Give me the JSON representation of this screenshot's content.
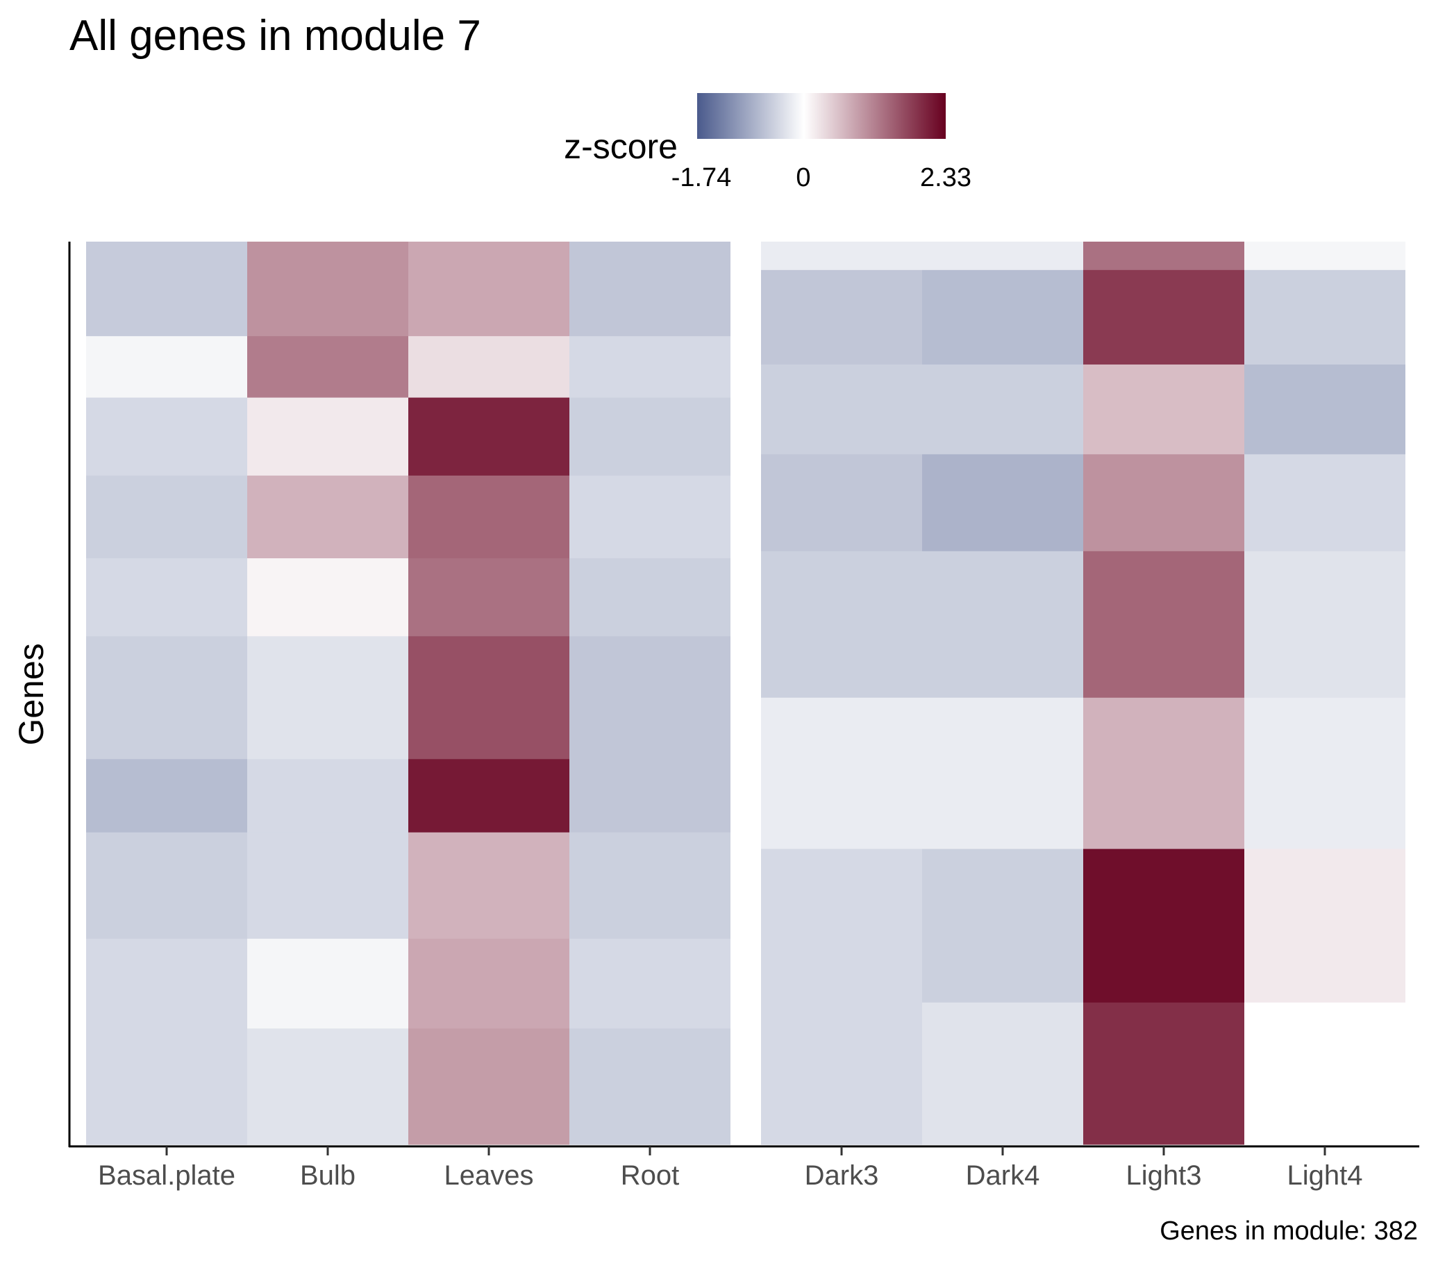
{
  "chart_data": {
    "type": "heatmap",
    "title": "All genes in module 7",
    "ylabel": "Genes",
    "xlabel": "",
    "caption": "Genes in module: 382",
    "n_genes": 382,
    "legend": {
      "title": "z-score",
      "min": -1.74,
      "mid": 0,
      "max": 2.33,
      "tick_labels": [
        "-1.74",
        "0",
        "2.33"
      ],
      "low_color": "#4a5a8c",
      "mid_color": "#ffffff",
      "high_color": "#67001f",
      "placement": "top"
    },
    "panels": [
      {
        "columns": [
          "Basal.plate",
          "Bulb",
          "Leaves",
          "Root"
        ],
        "cluster_rows": [
          {
            "genes": 40,
            "values": [
              -0.55,
              1.0,
              0.8,
              -0.6
            ]
          },
          {
            "genes": 26,
            "values": [
              -0.1,
              1.2,
              0.3,
              -0.4
            ]
          },
          {
            "genes": 33,
            "values": [
              -0.4,
              0.2,
              2.0,
              -0.5
            ]
          },
          {
            "genes": 35,
            "values": [
              -0.5,
              0.7,
              1.4,
              -0.4
            ]
          },
          {
            "genes": 33,
            "values": [
              -0.4,
              0.1,
              1.3,
              -0.5
            ]
          },
          {
            "genes": 52,
            "values": [
              -0.5,
              -0.3,
              1.6,
              -0.6
            ]
          },
          {
            "genes": 31,
            "values": [
              -0.7,
              -0.4,
              2.1,
              -0.6
            ]
          },
          {
            "genes": 45,
            "values": [
              -0.5,
              -0.4,
              0.7,
              -0.5
            ]
          },
          {
            "genes": 38,
            "values": [
              -0.4,
              -0.1,
              0.8,
              -0.4
            ]
          },
          {
            "genes": 49,
            "values": [
              -0.4,
              -0.3,
              0.9,
              -0.5
            ]
          }
        ]
      },
      {
        "columns": [
          "Dark3",
          "Dark4",
          "Light3",
          "Light4"
        ],
        "cluster_rows": [
          {
            "genes": 12,
            "values": [
              -0.2,
              -0.2,
              1.3,
              -0.1
            ]
          },
          {
            "genes": 40,
            "values": [
              -0.6,
              -0.7,
              1.8,
              -0.5
            ]
          },
          {
            "genes": 38,
            "values": [
              -0.5,
              -0.5,
              0.6,
              -0.7
            ]
          },
          {
            "genes": 41,
            "values": [
              -0.6,
              -0.8,
              1.0,
              -0.4
            ]
          },
          {
            "genes": 62,
            "values": [
              -0.5,
              -0.5,
              1.4,
              -0.3
            ]
          },
          {
            "genes": 64,
            "values": [
              -0.2,
              -0.2,
              0.7,
              -0.2
            ]
          },
          {
            "genes": 65,
            "values": [
              -0.4,
              -0.5,
              2.2,
              0.2
            ]
          },
          {
            "genes": 60,
            "values": [
              -0.4,
              -0.3,
              1.9,
              0.0
            ]
          }
        ]
      }
    ],
    "grid": false
  }
}
